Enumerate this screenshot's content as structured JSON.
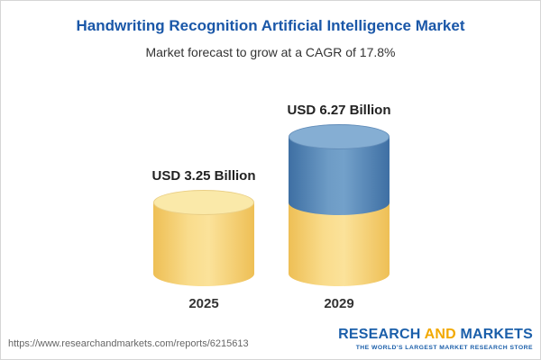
{
  "header": {
    "title": "Handwriting Recognition Artificial Intelligence Market",
    "subtitle": "Market forecast to grow at a CAGR of 17.8%"
  },
  "chart_data": {
    "type": "bar",
    "style": "3d-cylinder",
    "categories": [
      "2025",
      "2029"
    ],
    "values": [
      3.25,
      6.27
    ],
    "value_labels": [
      "USD 3.25 Billion",
      "USD 6.27 Billion"
    ],
    "unit": "USD Billion",
    "cagr_percent": 17.8,
    "legend_position": "none",
    "grid": false,
    "colors": {
      "base_segment": "#F7D877",
      "growth_segment": "#4E81B3"
    },
    "notes": "2029 bar is stacked: yellow base equals 2025 value (3.25), blue top is growth to 6.27"
  },
  "footer": {
    "source_url": "https://www.researchandmarkets.com/reports/6215613",
    "brand": {
      "word1": "RESEARCH",
      "word2": "AND",
      "word3": "MARKETS"
    },
    "tagline": "THE WORLD'S LARGEST MARKET RESEARCH STORE"
  }
}
